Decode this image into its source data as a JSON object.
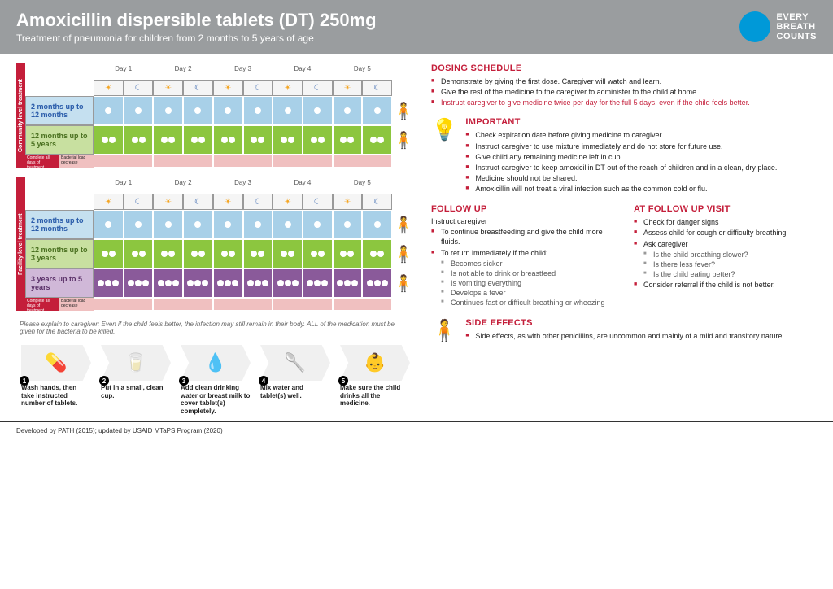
{
  "header": {
    "title": "Amoxicillin dispersible tablets (DT) 250mg",
    "subtitle": "Treatment of pneumonia for children from 2 months to 5 years of age",
    "logo_line1": "EVERY",
    "logo_line2": "BREATH",
    "logo_line3": "COUNTS"
  },
  "days": [
    "Day 1",
    "Day 2",
    "Day 3",
    "Day 4",
    "Day 5"
  ],
  "sched1": {
    "side": "Community level treatment",
    "rows": [
      {
        "label": "2 months up to 12 months",
        "color": "lightblue",
        "pills": 1
      },
      {
        "label": "12 months up to 5 years",
        "color": "green",
        "pills": 2
      }
    ]
  },
  "sched2": {
    "side": "Facility level treatment",
    "rows": [
      {
        "label": "2 months up to 12 months",
        "color": "lightblue",
        "pills": 1
      },
      {
        "label": "12 months up to 3 years",
        "color": "green",
        "pills": 2
      },
      {
        "label": "3 years up to 5 years",
        "color": "purple",
        "pills": 3
      }
    ]
  },
  "strip": {
    "a": "Complete all days of treatment",
    "b": "Bacterial load decrease"
  },
  "note": "Please explain to caregiver: Even if the child feels better, the infection may still remain in their body. ALL of the medication must be given for the bacteria to be killed.",
  "steps": [
    {
      "n": "1",
      "text": "Wash hands, then take instructed number of tablets."
    },
    {
      "n": "2",
      "text": "Put in a small, clean cup."
    },
    {
      "n": "3",
      "text": "Add clean drinking water or breast milk to cover tablet(s) completely."
    },
    {
      "n": "4",
      "text": "Mix water and tablet(s) well."
    },
    {
      "n": "5",
      "text": "Make sure the child drinks all the medicine."
    }
  ],
  "dosing": {
    "title": "DOSING SCHEDULE",
    "items": [
      "Demonstrate by giving the first dose. Caregiver will watch and learn.",
      "Give the rest of the medicine to the caregiver to administer to the child at home.",
      "Instruct caregiver to give medicine twice per day for the full 5 days, even if the child feels better."
    ]
  },
  "important": {
    "title": "IMPORTANT",
    "items": [
      "Check expiration date before giving medicine to caregiver.",
      "Instruct caregiver to use mixture immediately and do not store for future use.",
      "Give child any remaining medicine left in cup.",
      "Instruct caregiver to keep amoxicillin DT out of the reach of children and in a clean, dry place.",
      "Medicine should not be shared.",
      "Amoxicillin will not treat a viral infection such as the common cold or flu."
    ]
  },
  "followup": {
    "title": "FOLLOW UP",
    "sub": "Instruct caregiver",
    "items": [
      "To continue breastfeeding and give the child more fluids.",
      "To return immediately if the child:"
    ],
    "subitems": [
      "Becomes sicker",
      "Is not able to drink or breastfeed",
      "Is vomiting everything",
      "Develops a fever",
      "Continues fast or difficult breathing or wheezing"
    ]
  },
  "visit": {
    "title": "AT FOLLOW UP VISIT",
    "items": [
      "Check for danger signs",
      "Assess child for cough or difficulty breathing",
      "Ask caregiver"
    ],
    "subitems": [
      "Is the child breathing slower?",
      "Is there less fever?",
      "Is the child eating better?"
    ],
    "last": "Consider referral if the child is not better."
  },
  "side": {
    "title": "SIDE EFFECTS",
    "items": [
      "Side effects, as with other penicillins, are uncommon and mainly of a mild and transitory nature."
    ]
  },
  "footer": "Developed by PATH (2015); updated by USAID MTaPS Program (2020)"
}
